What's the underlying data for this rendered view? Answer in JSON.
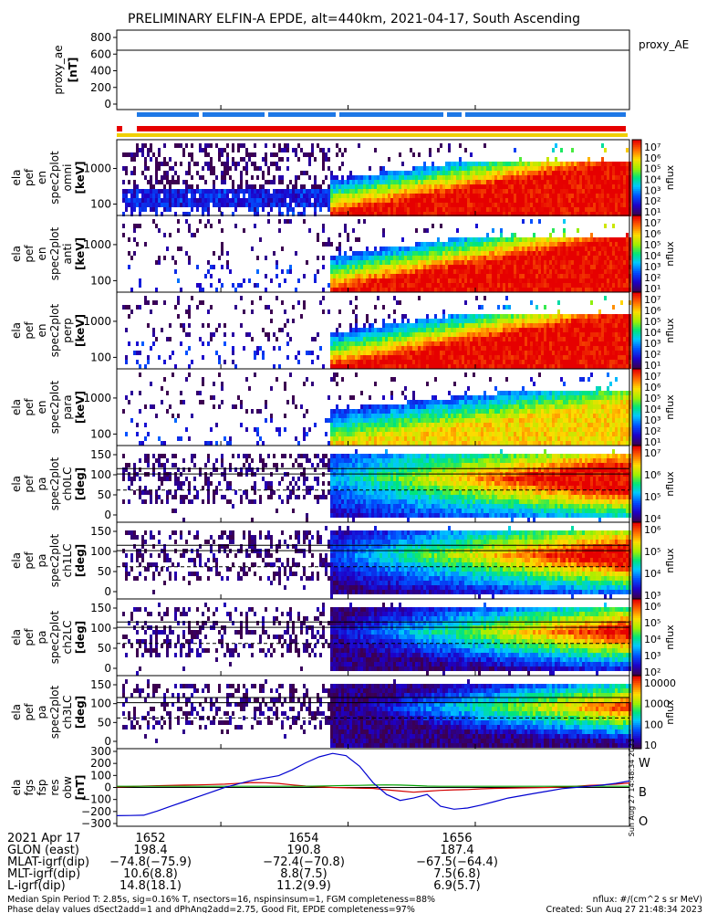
{
  "title": "PRELIMINARY ELFIN-A EPDE, alt=440km, 2021-04-17, South Ascending",
  "chart_data": {
    "type": "heatmap",
    "panels": [
      {
        "ylabel": [
          "proxy_ae",
          "[nT]"
        ],
        "yticks": [
          "800",
          "600",
          "400",
          "200",
          "0"
        ],
        "right_label": "proxy_AE",
        "kind": "line",
        "ylim": [
          0,
          850
        ],
        "level": 635
      },
      {
        "ylabel": [
          "ela",
          "pef",
          "en",
          "spec2plot",
          "omni",
          "[keV]"
        ],
        "yticks": [
          "1000",
          "100"
        ],
        "kind": "energy",
        "cbar_ticks": [
          "10⁷",
          "10⁶",
          "10⁵",
          "10⁴",
          "10³",
          "10²",
          "10¹"
        ],
        "cbar_label": "nflux"
      },
      {
        "ylabel": [
          "ela",
          "pef",
          "en",
          "spec2plot",
          "anti",
          "[keV]"
        ],
        "yticks": [
          "1000",
          "100"
        ],
        "kind": "energy",
        "cbar_ticks": [
          "10⁷",
          "10⁶",
          "10⁵",
          "10⁴",
          "10³",
          "10²",
          "10¹"
        ],
        "cbar_label": "nflux"
      },
      {
        "ylabel": [
          "ela",
          "pef",
          "en",
          "spec2plot",
          "perp",
          "[keV]"
        ],
        "yticks": [
          "1000",
          "100"
        ],
        "kind": "energy",
        "cbar_ticks": [
          "10⁷",
          "10⁶",
          "10⁵",
          "10⁴",
          "10³",
          "10²",
          "10¹"
        ],
        "cbar_label": "nflux"
      },
      {
        "ylabel": [
          "ela",
          "pef",
          "en",
          "spec2plot",
          "para",
          "[keV]"
        ],
        "yticks": [
          "1000",
          "100"
        ],
        "kind": "energy",
        "cbar_ticks": [
          "10⁷",
          "10⁶",
          "10⁵",
          "10⁴",
          "10³",
          "10²",
          "10¹"
        ],
        "cbar_label": "nflux"
      },
      {
        "ylabel": [
          "ela",
          "pef",
          "pa",
          "spec2plot",
          "ch0LC",
          "[deg]"
        ],
        "yticks": [
          "150",
          "100",
          "50",
          "0"
        ],
        "kind": "pitch",
        "cbar_ticks": [
          "10⁷",
          "10⁶",
          "10⁵",
          "10⁴"
        ],
        "cbar_label": "nflux"
      },
      {
        "ylabel": [
          "ela",
          "pef",
          "pa",
          "spec2plot",
          "ch1LC",
          "[deg]"
        ],
        "yticks": [
          "150",
          "100",
          "50",
          "0"
        ],
        "kind": "pitch",
        "cbar_ticks": [
          "10⁶",
          "10⁵",
          "10⁴",
          "10³"
        ],
        "cbar_label": "nflux"
      },
      {
        "ylabel": [
          "ela",
          "pef",
          "pa",
          "spec2plot",
          "ch2LC",
          "[deg]"
        ],
        "yticks": [
          "150",
          "100",
          "50",
          "0"
        ],
        "kind": "pitch",
        "cbar_ticks": [
          "10⁶",
          "10⁵",
          "10⁴",
          "10³",
          "10²"
        ],
        "cbar_label": "nflux"
      },
      {
        "ylabel": [
          "ela",
          "pef",
          "pa",
          "spec2plot",
          "ch3LC",
          "[deg]"
        ],
        "yticks": [
          "150",
          "100",
          "50",
          "0"
        ],
        "kind": "pitch",
        "cbar_ticks": [
          "10000",
          "1000",
          "100",
          "10"
        ],
        "cbar_label": "nflux"
      },
      {
        "ylabel": [
          "ela",
          "fgs",
          "fsp",
          "res",
          "obw",
          "[nT]"
        ],
        "yticks": [
          "300",
          "200",
          "100",
          "0",
          "−100",
          "−200",
          "−300"
        ],
        "kind": "field",
        "ylim": [
          -330,
          330
        ]
      }
    ],
    "field_components": [
      {
        "name": "W",
        "color": "#d40000",
        "values": [
          5,
          8,
          12,
          15,
          18,
          20,
          22,
          25,
          28,
          35,
          42,
          40,
          34,
          22,
          12,
          5,
          0,
          -3,
          -6,
          -8,
          -20,
          -30,
          -40,
          -32,
          -25,
          -20,
          -18,
          -12,
          -8,
          -6,
          -4,
          -2,
          0,
          5,
          10,
          18,
          22,
          28,
          38
        ]
      },
      {
        "name": "B",
        "color": "#00a000",
        "values": [
          10,
          10,
          10,
          10,
          10,
          10,
          10,
          10,
          10,
          10,
          10,
          10,
          10,
          10,
          10,
          12,
          14,
          16,
          18,
          20,
          22,
          20,
          16,
          12,
          10,
          10,
          10,
          10,
          10,
          10,
          10,
          10,
          10,
          10,
          10,
          10,
          10,
          10,
          10
        ]
      },
      {
        "name": "O",
        "color": "#0000d0",
        "values": [
          -240,
          -238,
          -236,
          -200,
          -160,
          -120,
          -80,
          -40,
          0,
          30,
          60,
          80,
          100,
          150,
          210,
          260,
          290,
          270,
          180,
          40,
          -60,
          -110,
          -90,
          -60,
          -160,
          -185,
          -175,
          -150,
          -120,
          -90,
          -70,
          -50,
          -30,
          -10,
          0,
          10,
          20,
          35,
          55
        ]
      }
    ],
    "x_ticks": [
      "1652",
      "1654",
      "1656"
    ],
    "x_tick_minutes": [
      16.867,
      16.9,
      16.933
    ],
    "x_range_minutes": [
      16.84,
      16.973
    ],
    "colorbar_pitch3": [
      "10000",
      "1000",
      "100",
      "10"
    ]
  },
  "footer": {
    "rows": [
      {
        "label": "2021 Apr 17",
        "values": [
          "1652",
          "1654",
          "1656"
        ]
      },
      {
        "label": "GLON (east)",
        "values": [
          "198.4",
          "190.8",
          "187.4"
        ]
      },
      {
        "label": "MLAT-igrf(dip)",
        "values": [
          "−74.8(−75.9)",
          "−72.4(−70.8)",
          "−67.5(−64.4)"
        ]
      },
      {
        "label": "MLT-igrf(dip)",
        "values": [
          "10.6(8.8)",
          "8.8(7.5)",
          "7.5(6.8)"
        ]
      },
      {
        "label": "L-igrf(dip)",
        "values": [
          "14.8(18.1)",
          "11.2(9.9)",
          "6.9(5.7)"
        ]
      }
    ],
    "note1": "Median Spin Period T: 2.85s, sig=0.16% T, nsectors=16, nspinsinsum=1, FGM completeness=88%",
    "note2": "Phase delay values dSect2add=1 and dPhAng2add=2.75, Good Fit, EPDE completeness=97%",
    "units": "nflux: #/(cm^2 s sr MeV)",
    "created": "Created: Sun Aug 27 21:48:34 2023",
    "side_stamp": "Sun Aug 27 14:48:34 2023"
  },
  "colors": {
    "red": "#e60000",
    "blue": "#1e78e6",
    "yellow": "#f0d000"
  }
}
